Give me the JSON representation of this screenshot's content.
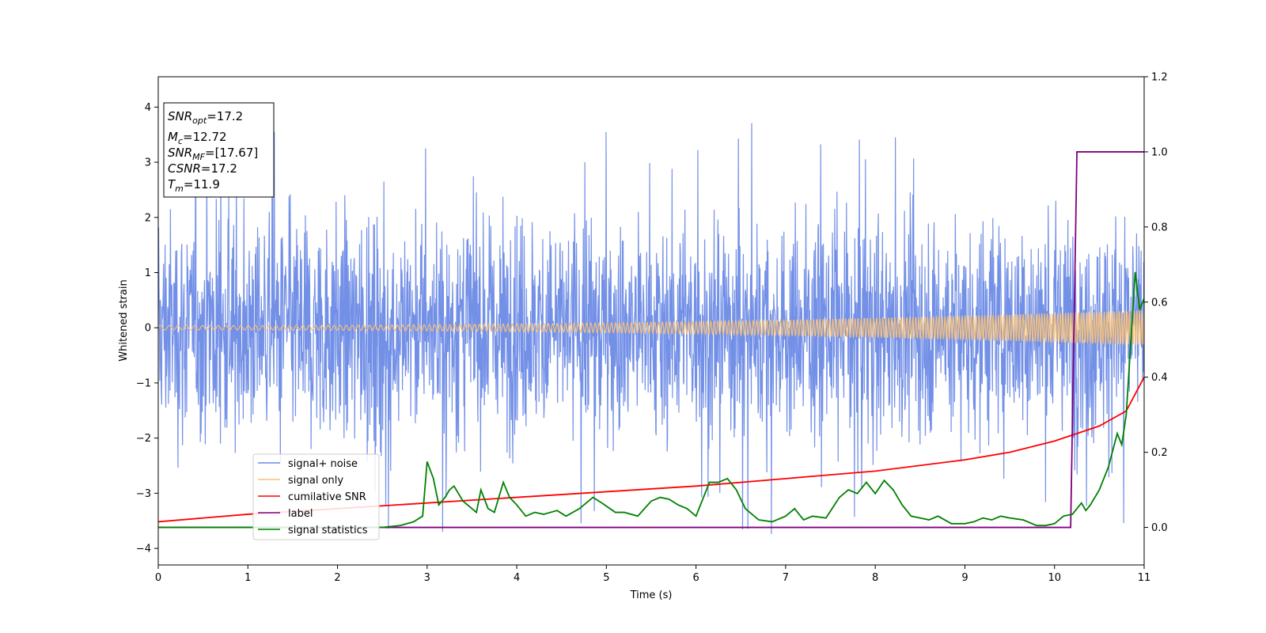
{
  "chart_data": {
    "type": "line",
    "xlabel": "Time (s)",
    "ylabel": "Whitened strain",
    "xlim": [
      0,
      11
    ],
    "ylim_left": [
      -4.3,
      4.55
    ],
    "ylim_right": [
      -0.1,
      1.2
    ],
    "x_ticks": [
      "0",
      "1",
      "2",
      "3",
      "4",
      "5",
      "6",
      "7",
      "8",
      "9",
      "10",
      "11"
    ],
    "y_ticks_left": [
      "−4",
      "−3",
      "−2",
      "−1",
      "0",
      "1",
      "2",
      "3",
      "4"
    ],
    "y_ticks_right": [
      "0.0",
      "0.2",
      "0.4",
      "0.6",
      "0.8",
      "1.0",
      "1.2"
    ],
    "grid": false,
    "legend_position": "lower-left",
    "info_box": {
      "snr_opt": {
        "base": "SNR",
        "sub": "opt",
        "value": "=17.2"
      },
      "mc": {
        "base": "M",
        "sub": "c",
        "value": "=12.72"
      },
      "snr_mf": {
        "base": "SNR",
        "sub": "MF",
        "value": "=[17.67]"
      },
      "csnr": {
        "base": "CSNR",
        "sub": "",
        "value": "=17.2"
      },
      "tm": {
        "base": "T",
        "sub": "m",
        "value": "=11.9"
      }
    },
    "series": [
      {
        "name": "signal+ noise",
        "axis": "left",
        "color": "#6b8ae6",
        "noise_amplitude_sd": 1.0,
        "x_range": [
          0,
          11
        ]
      },
      {
        "name": "signal only",
        "axis": "left",
        "color": "#f5c07a",
        "chirp_amplitude_start": 0.04,
        "chirp_amplitude_end": 0.32,
        "x_range": [
          0,
          11
        ]
      },
      {
        "name": "cumilative SNR",
        "axis": "right",
        "color": "#ff0000",
        "x": [
          0,
          1,
          2,
          3,
          4,
          5,
          6,
          7,
          8,
          9,
          9.5,
          10,
          10.5,
          10.8,
          11
        ],
        "y": [
          0.015,
          0.035,
          0.05,
          0.065,
          0.08,
          0.095,
          0.11,
          0.13,
          0.15,
          0.18,
          0.2,
          0.23,
          0.27,
          0.31,
          0.4
        ]
      },
      {
        "name": "label",
        "axis": "right",
        "color": "#800080",
        "x": [
          0,
          10.18,
          10.25,
          11
        ],
        "y": [
          0.0,
          0.0,
          1.0,
          1.0
        ]
      },
      {
        "name": "signal statistics",
        "axis": "right",
        "color": "#008000",
        "x": [
          0,
          0.5,
          1.0,
          1.5,
          2.0,
          2.5,
          2.7,
          2.85,
          2.95,
          3.0,
          3.07,
          3.13,
          3.2,
          3.25,
          3.3,
          3.4,
          3.55,
          3.6,
          3.68,
          3.75,
          3.85,
          3.92,
          4.0,
          4.1,
          4.2,
          4.3,
          4.45,
          4.55,
          4.7,
          4.85,
          4.95,
          5.1,
          5.2,
          5.35,
          5.5,
          5.6,
          5.7,
          5.8,
          5.9,
          6.0,
          6.15,
          6.25,
          6.35,
          6.45,
          6.55,
          6.7,
          6.85,
          7.0,
          7.1,
          7.2,
          7.3,
          7.45,
          7.6,
          7.7,
          7.8,
          7.9,
          8.0,
          8.1,
          8.2,
          8.3,
          8.4,
          8.5,
          8.6,
          8.7,
          8.85,
          9.0,
          9.1,
          9.2,
          9.3,
          9.4,
          9.5,
          9.65,
          9.8,
          9.9,
          10.0,
          10.1,
          10.2,
          10.3,
          10.35,
          10.4,
          10.5,
          10.6,
          10.7,
          10.75,
          10.8,
          10.9,
          10.95,
          11.0
        ],
        "y": [
          0.0,
          0.0,
          0.0,
          0.0,
          0.0,
          0.0,
          0.005,
          0.015,
          0.03,
          0.175,
          0.13,
          0.06,
          0.08,
          0.1,
          0.11,
          0.07,
          0.04,
          0.1,
          0.05,
          0.04,
          0.12,
          0.08,
          0.06,
          0.03,
          0.04,
          0.035,
          0.045,
          0.03,
          0.05,
          0.08,
          0.065,
          0.04,
          0.04,
          0.03,
          0.07,
          0.08,
          0.075,
          0.06,
          0.05,
          0.03,
          0.12,
          0.12,
          0.13,
          0.1,
          0.05,
          0.02,
          0.015,
          0.03,
          0.05,
          0.02,
          0.03,
          0.025,
          0.08,
          0.1,
          0.09,
          0.12,
          0.09,
          0.125,
          0.1,
          0.06,
          0.03,
          0.025,
          0.02,
          0.03,
          0.01,
          0.01,
          0.015,
          0.025,
          0.02,
          0.03,
          0.025,
          0.02,
          0.005,
          0.005,
          0.01,
          0.03,
          0.035,
          0.065,
          0.045,
          0.06,
          0.1,
          0.16,
          0.25,
          0.22,
          0.3,
          0.68,
          0.58,
          0.61
        ]
      }
    ]
  }
}
